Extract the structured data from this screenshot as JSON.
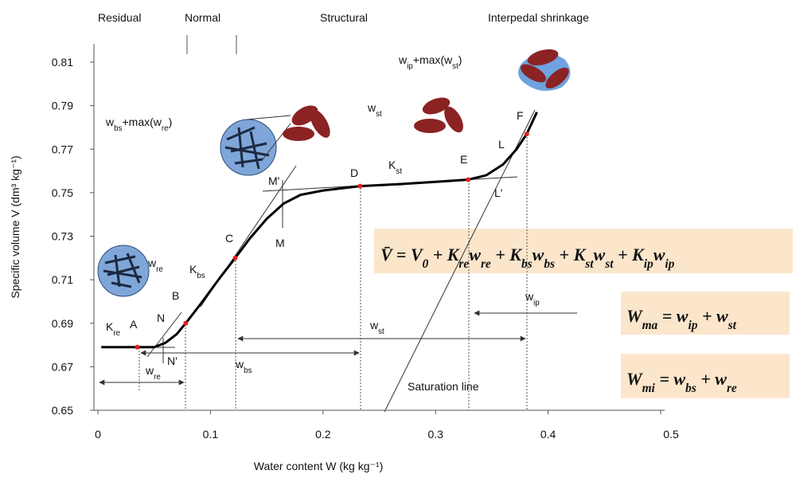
{
  "chart_data": {
    "type": "line",
    "x_label": "Water content W (kg kg⁻¹)",
    "y_label": "Specific volume V (dm³ kg⁻¹)",
    "xlim": [
      0,
      0.5
    ],
    "ylim": [
      0.65,
      0.81
    ],
    "xticks": [
      0,
      0.1,
      0.2,
      0.3,
      0.4,
      0.5
    ],
    "yticks": [
      0.65,
      0.67,
      0.69,
      0.71,
      0.73,
      0.75,
      0.77,
      0.79,
      0.81
    ],
    "regions": [
      "Residual",
      "Normal",
      "Structural",
      "Interpedal shrinkage"
    ],
    "series": [
      {
        "color": "#000000",
        "x": [
          0.003,
          0.035,
          0.05,
          0.06,
          0.07,
          0.078,
          0.09,
          0.1,
          0.11,
          0.122,
          0.135,
          0.15,
          0.165,
          0.18,
          0.2,
          0.233,
          0.27,
          0.3,
          0.329,
          0.345,
          0.36,
          0.372,
          0.381,
          0.39
        ],
        "values": [
          0.679,
          0.679,
          0.679,
          0.681,
          0.685,
          0.69,
          0.698,
          0.705,
          0.712,
          0.72,
          0.729,
          0.738,
          0.745,
          0.749,
          0.751,
          0.753,
          0.754,
          0.755,
          0.756,
          0.758,
          0.763,
          0.77,
          0.777,
          0.787
        ]
      },
      {
        "type": "scatter",
        "color": "#e02020",
        "x": [
          0.035,
          0.078,
          0.122,
          0.233,
          0.329,
          0.381
        ],
        "values": [
          0.679,
          0.69,
          0.72,
          0.753,
          0.756,
          0.777
        ]
      }
    ],
    "annotations": [
      {
        "parts": [
          "K",
          {
            "sub": "re"
          }
        ]
      },
      {
        "parts": [
          "A"
        ]
      },
      {
        "parts": [
          "N"
        ]
      },
      {
        "parts": [
          "B"
        ]
      },
      {
        "parts": [
          "N'"
        ]
      },
      {
        "parts": [
          "K",
          {
            "sub": "bs"
          }
        ]
      },
      {
        "parts": [
          "C"
        ]
      },
      {
        "parts": [
          "M'"
        ]
      },
      {
        "parts": [
          "M"
        ]
      },
      {
        "parts": [
          "D"
        ]
      },
      {
        "parts": [
          "K",
          {
            "sub": "st"
          }
        ]
      },
      {
        "parts": [
          "E"
        ]
      },
      {
        "parts": [
          "F"
        ]
      },
      {
        "parts": [
          "L"
        ]
      },
      {
        "parts": [
          "L'"
        ]
      },
      {
        "parts": [
          "w",
          {
            "sub": "re"
          }
        ]
      },
      {
        "parts": [
          "w",
          {
            "sub": "bs"
          }
        ]
      },
      {
        "parts": [
          "w",
          {
            "sub": "st"
          }
        ]
      },
      {
        "parts": [
          "w",
          {
            "sub": "ip"
          }
        ]
      },
      {
        "parts": [
          "Saturation line"
        ]
      },
      {
        "parts": [
          "w",
          {
            "sub": "re"
          }
        ]
      },
      {
        "parts": [
          "w",
          {
            "sub": "bs"
          },
          "+max(w",
          {
            "sub": "re"
          },
          ")"
        ]
      },
      {
        "parts": [
          "w",
          {
            "sub": "st"
          }
        ]
      },
      {
        "parts": [
          "w",
          {
            "sub": "ip"
          },
          "+max(w",
          {
            "sub": "st"
          },
          ")"
        ]
      }
    ],
    "equations": [
      {
        "parts": [
          "V̄ = V",
          {
            "sub": "0"
          },
          " + K",
          {
            "sub": "re"
          },
          "w",
          {
            "sub": "re"
          },
          " + K",
          {
            "sub": "bs"
          },
          "w",
          {
            "sub": "bs"
          },
          " + K",
          {
            "sub": "st"
          },
          "w",
          {
            "sub": "st"
          },
          " + K",
          {
            "sub": "ip"
          },
          "w",
          {
            "sub": "ip"
          }
        ]
      },
      {
        "parts": [
          "W",
          {
            "sub": "ma"
          },
          " = w",
          {
            "sub": "ip"
          },
          " + w",
          {
            "sub": "st"
          }
        ]
      },
      {
        "parts": [
          "W",
          {
            "sub": "mi"
          },
          " = w",
          {
            "sub": "bs"
          },
          " + w",
          {
            "sub": "re"
          }
        ]
      }
    ]
  }
}
